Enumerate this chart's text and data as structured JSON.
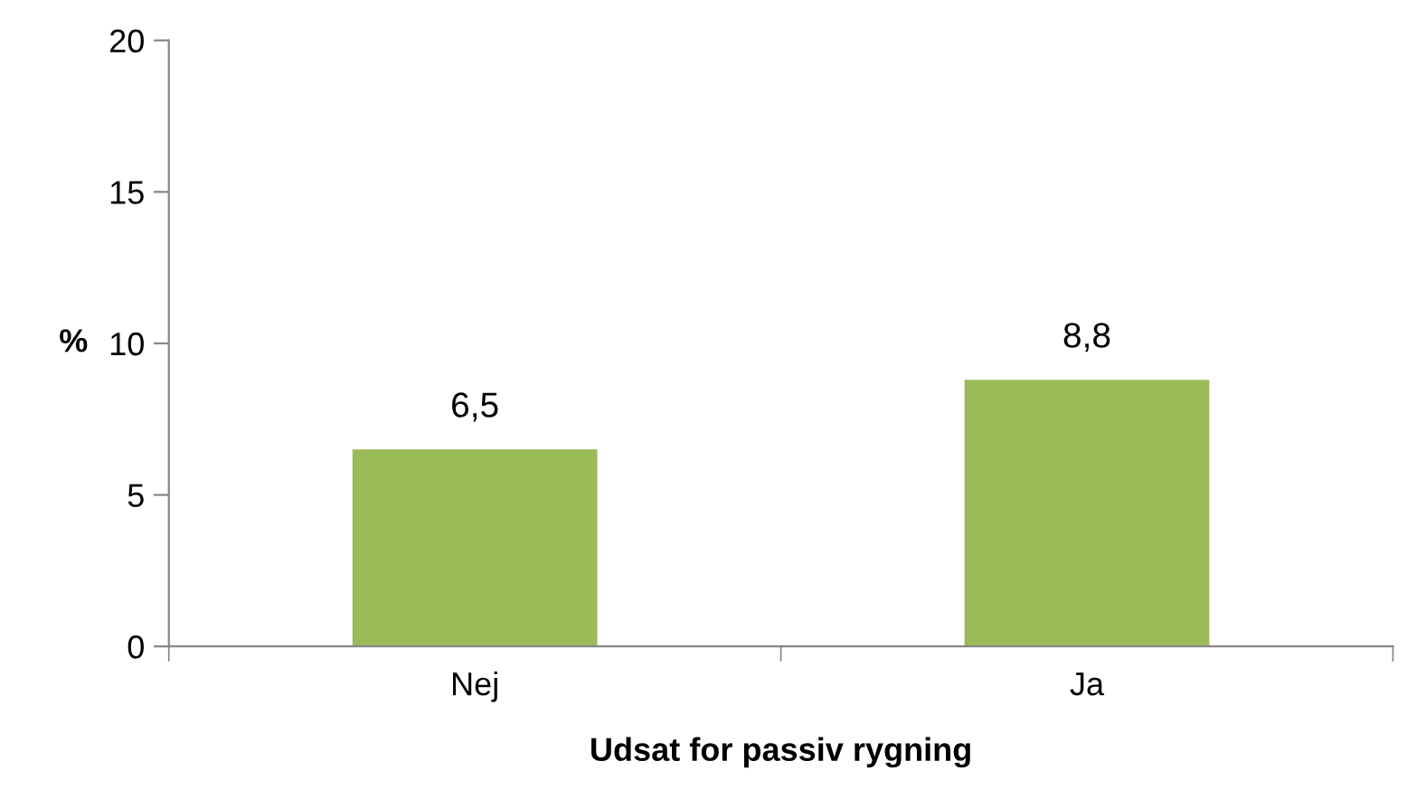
{
  "chart_data": {
    "type": "bar",
    "xlabel": "Udsat for passiv rygning",
    "ylabel": "%",
    "categories": [
      "Nej",
      "Ja"
    ],
    "values": [
      6.5,
      8.8
    ],
    "value_labels": [
      "6,5",
      "8,8"
    ],
    "color": "#9bbb59",
    "ylim": [
      0,
      20
    ],
    "yticks": [
      0,
      5,
      10,
      15,
      20
    ],
    "grid": false,
    "legend": false
  }
}
